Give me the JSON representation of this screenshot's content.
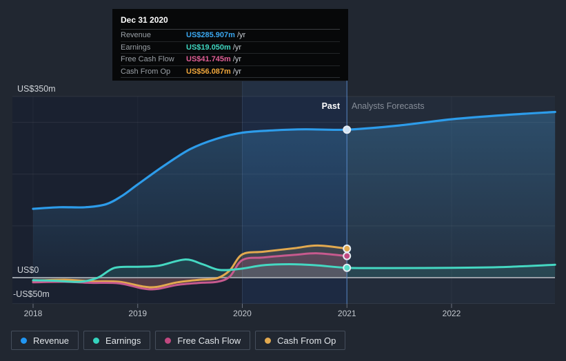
{
  "tooltip": {
    "title": "Dec 31 2020",
    "rows": [
      {
        "label": "Revenue",
        "value": "US$285.907m",
        "suffix": "/yr",
        "color": "#3aa7f0"
      },
      {
        "label": "Earnings",
        "value": "US$19.050m",
        "suffix": "/yr",
        "color": "#3fd6c0"
      },
      {
        "label": "Free Cash Flow",
        "value": "US$41.745m",
        "suffix": "/yr",
        "color": "#e05e95"
      },
      {
        "label": "Cash From Op",
        "value": "US$56.087m",
        "suffix": "/yr",
        "color": "#efa63b"
      }
    ]
  },
  "annotations": {
    "past": "Past",
    "forecasts": "Analysts Forecasts"
  },
  "axis": {
    "y_labels": [
      "US$350m",
      "US$0",
      "-US$50m"
    ],
    "x_labels": [
      "2018",
      "2019",
      "2020",
      "2021",
      "2022"
    ]
  },
  "legend": [
    {
      "label": "Revenue",
      "color": "#2196f3"
    },
    {
      "label": "Earnings",
      "color": "#35d3be"
    },
    {
      "label": "Free Cash Flow",
      "color": "#c14880"
    },
    {
      "label": "Cash From Op",
      "color": "#e2a94f"
    }
  ],
  "chart_data": {
    "type": "line",
    "unit": "US$ millions per year",
    "x_axis": {
      "ticks": [
        2018,
        2019,
        2020,
        2021,
        2022
      ],
      "range": [
        2017.8,
        2022.99
      ]
    },
    "y_axis": {
      "labeled_ticks": [
        350,
        0,
        -50
      ],
      "gridlines": [
        350,
        300,
        200,
        100,
        0,
        -50
      ],
      "range": [
        -53,
        350
      ]
    },
    "divider": {
      "x": 2021,
      "past_label": "Past",
      "forecast_label": "Analysts Forecasts"
    },
    "highlight_band": {
      "from": 2020,
      "to": 2021
    },
    "series": [
      {
        "name": "Revenue",
        "color": "#2d9cea",
        "width": 3.2,
        "dot_color": "#cfe3f6",
        "area_fill": "url(#gRev)",
        "value_at_divider": 285.907,
        "points": [
          [
            2018,
            133
          ],
          [
            2018.25,
            136
          ],
          [
            2018.5,
            136
          ],
          [
            2018.7,
            142
          ],
          [
            2018.85,
            158
          ],
          [
            2019,
            180
          ],
          [
            2019.25,
            216
          ],
          [
            2019.5,
            248
          ],
          [
            2019.75,
            268
          ],
          [
            2020,
            280
          ],
          [
            2020.3,
            284.5
          ],
          [
            2020.6,
            286.5
          ],
          [
            2021,
            285.907
          ],
          [
            2021.5,
            294
          ],
          [
            2022,
            306
          ],
          [
            2022.5,
            314
          ],
          [
            2022.99,
            320
          ]
        ]
      },
      {
        "name": "Cash From Op",
        "color": "#e2a94f",
        "width": 3,
        "dot_color": "#e2a94f",
        "area_fill": "rgba(226,168,78,0.15)",
        "value_at_divider": 56.087,
        "points": [
          [
            2018,
            -6
          ],
          [
            2018.3,
            -4
          ],
          [
            2018.55,
            -7
          ],
          [
            2018.82,
            -8
          ],
          [
            2019.05,
            -17
          ],
          [
            2019.18,
            -18
          ],
          [
            2019.38,
            -9
          ],
          [
            2019.6,
            -4
          ],
          [
            2019.76,
            -1
          ],
          [
            2019.88,
            14
          ],
          [
            2020,
            45
          ],
          [
            2020.2,
            50
          ],
          [
            2020.5,
            57
          ],
          [
            2020.72,
            62
          ],
          [
            2021,
            56.087
          ]
        ]
      },
      {
        "name": "Free Cash Flow",
        "color": "#c75a8e",
        "width": 3,
        "dot_color": "#c14880",
        "area_fill": "rgba(199,90,142,0.20)",
        "value_at_divider": 41.745,
        "points": [
          [
            2018,
            -9
          ],
          [
            2018.3,
            -8
          ],
          [
            2018.55,
            -10
          ],
          [
            2018.82,
            -11
          ],
          [
            2019.05,
            -21
          ],
          [
            2019.18,
            -22
          ],
          [
            2019.38,
            -14
          ],
          [
            2019.6,
            -10
          ],
          [
            2019.76,
            -8
          ],
          [
            2019.88,
            2
          ],
          [
            2020,
            34
          ],
          [
            2020.2,
            39
          ],
          [
            2020.5,
            44
          ],
          [
            2020.72,
            47
          ],
          [
            2021,
            41.745
          ]
        ]
      },
      {
        "name": "Earnings",
        "color": "#45d8c2",
        "width": 3,
        "dot_color": "#57dcca",
        "area_fill": "rgba(69,216,194,0.13)",
        "value_at_divider": 19.05,
        "points": [
          [
            2018,
            -5
          ],
          [
            2018.2,
            -6
          ],
          [
            2018.45,
            -8
          ],
          [
            2018.62,
            0
          ],
          [
            2018.78,
            19
          ],
          [
            2019,
            21
          ],
          [
            2019.2,
            23
          ],
          [
            2019.45,
            35
          ],
          [
            2019.62,
            26
          ],
          [
            2019.78,
            15
          ],
          [
            2019.98,
            17
          ],
          [
            2020.2,
            24
          ],
          [
            2020.45,
            26
          ],
          [
            2020.7,
            24
          ],
          [
            2021,
            19.05
          ],
          [
            2021.4,
            18.5
          ],
          [
            2022,
            19
          ],
          [
            2022.5,
            20.5
          ],
          [
            2022.99,
            25
          ]
        ]
      }
    ]
  }
}
